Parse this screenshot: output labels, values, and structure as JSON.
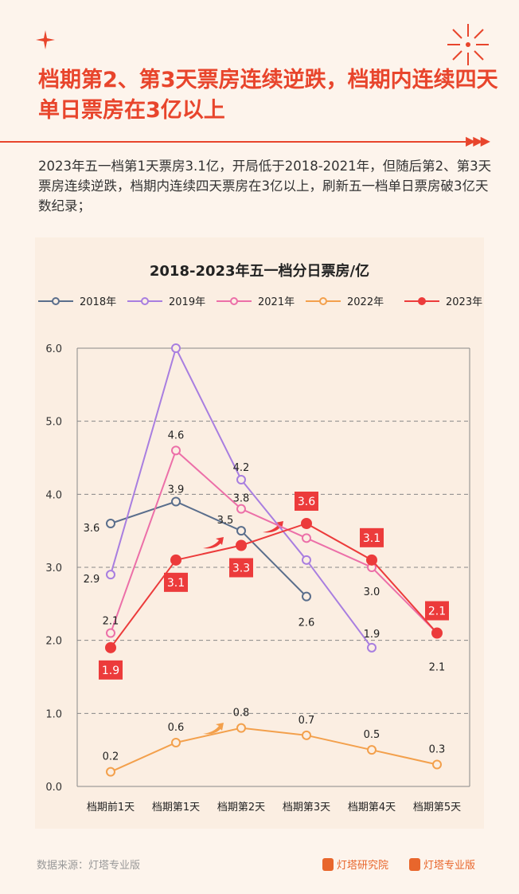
{
  "header": {
    "title": "档期第2、第3天票房连续逆跌，档期内连续四天单日票房在3亿以上",
    "accent": "#e8452c"
  },
  "description": "2023年五一档第1天票房3.1亿，开局低于2018-2021年，但随后第2、第3天票房连续逆跌，档期内连续四天票房在3亿以上，刷新五一档单日票房破3亿天数纪录；",
  "footer": {
    "source": "数据来源：灯塔专业版",
    "brand1": "灯塔研究院",
    "brand2": "灯塔专业版"
  },
  "chart_data": {
    "type": "line",
    "title": "2018-2023年五一档分日票房/亿",
    "categories": [
      "档期前1天",
      "档期第1天",
      "档期第2天",
      "档期第3天",
      "档期第4天",
      "档期第5天"
    ],
    "ylim": [
      0,
      6
    ],
    "yticks": [
      "0.0",
      "1.0",
      "2.0",
      "3.0",
      "4.0",
      "5.0",
      "6.0"
    ],
    "grid": true,
    "legend": "top",
    "series": [
      {
        "name": "2018年",
        "color": "#5a6e8c",
        "filled": false,
        "values": [
          3.6,
          3.9,
          3.5,
          2.6,
          null,
          null
        ],
        "labels": [
          "3.6",
          "3.9",
          "3.5",
          "2.6",
          null,
          null
        ]
      },
      {
        "name": "2019年",
        "color": "#a87ee0",
        "filled": false,
        "values": [
          2.9,
          6.0,
          4.2,
          3.1,
          1.9,
          null
        ],
        "labels": [
          "2.9",
          null,
          "4.2",
          null,
          "1.9",
          null
        ]
      },
      {
        "name": "2021年",
        "color": "#ec6fa8",
        "filled": false,
        "values": [
          2.1,
          4.6,
          3.8,
          3.4,
          3.0,
          2.1
        ],
        "labels": [
          "2.1",
          "4.6",
          "3.8",
          null,
          "3.0",
          "2.1"
        ]
      },
      {
        "name": "2022年",
        "color": "#f3a04c",
        "filled": false,
        "values": [
          0.2,
          0.6,
          0.8,
          0.7,
          0.5,
          0.3
        ],
        "labels": [
          "0.2",
          "0.6",
          "0.8",
          "0.7",
          "0.5",
          "0.3"
        ]
      },
      {
        "name": "2023年",
        "color": "#ec3b3b",
        "filled": true,
        "values": [
          1.9,
          3.1,
          3.3,
          3.6,
          3.1,
          2.1
        ],
        "labels": [
          "1.9",
          "3.1",
          "3.3",
          "3.6",
          "3.1",
          "2.1"
        ]
      }
    ]
  }
}
